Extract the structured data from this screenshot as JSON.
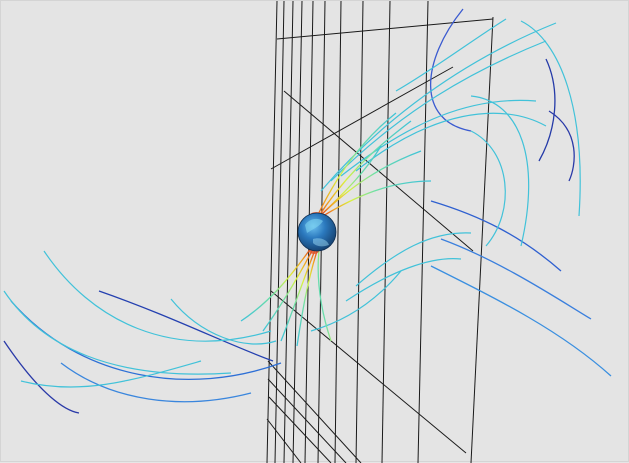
{
  "scene": {
    "background_color": "#e4e4e4",
    "grid_color": "#1a1a1a",
    "planet_colors": [
      "#1a4f86",
      "#2f7fc0",
      "#63b6e6"
    ],
    "planet_icon": "earth-globe-icon",
    "field_line_colormap": [
      "#1e2a9c",
      "#2d6fd6",
      "#3fc3d8",
      "#6fe0a5",
      "#d7f23a",
      "#f0a21b",
      "#d5301a"
    ]
  }
}
